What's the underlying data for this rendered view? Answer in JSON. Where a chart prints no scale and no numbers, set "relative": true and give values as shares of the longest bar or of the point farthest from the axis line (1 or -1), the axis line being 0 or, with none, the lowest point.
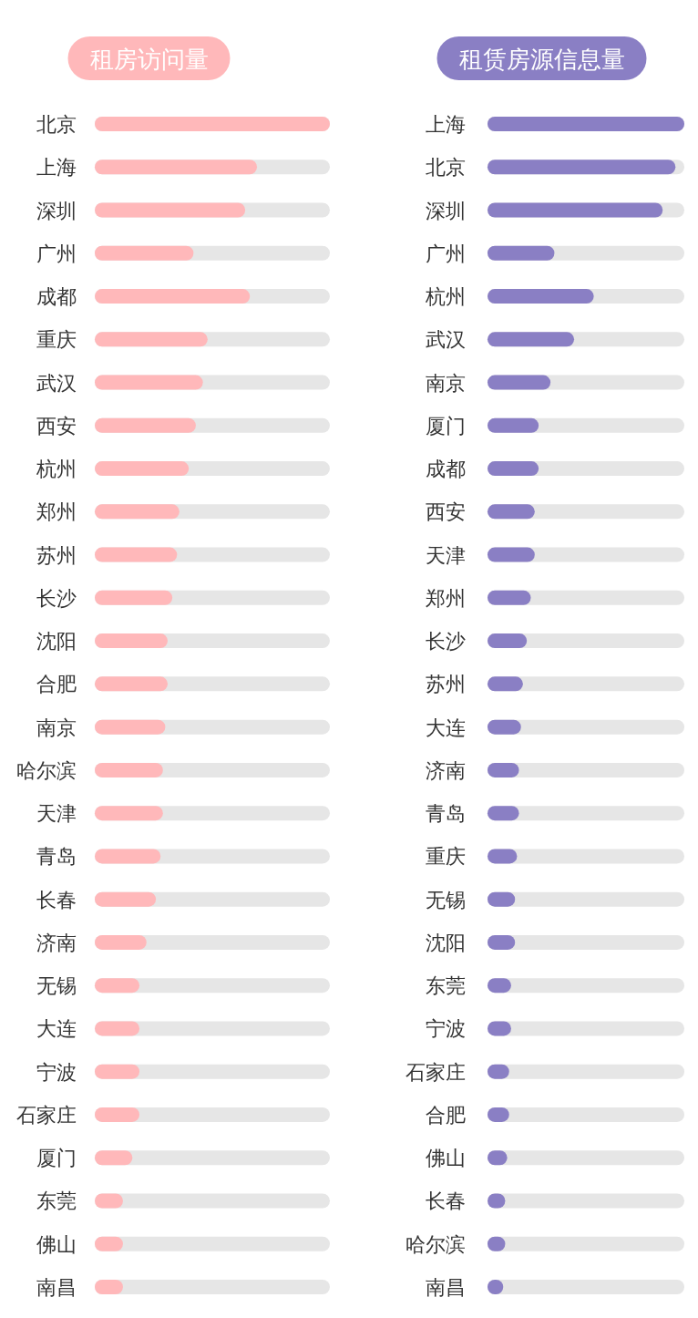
{
  "chart_data": [
    {
      "type": "bar",
      "orientation": "horizontal",
      "relative": true,
      "title": "租房访问量",
      "color": "#ffb8ba",
      "categories": [
        "北京",
        "上海",
        "深圳",
        "广州",
        "成都",
        "重庆",
        "武汉",
        "西安",
        "杭州",
        "郑州",
        "苏州",
        "长沙",
        "沈阳",
        "合肥",
        "南京",
        "哈尔滨",
        "天津",
        "青岛",
        "长春",
        "济南",
        "无锡",
        "大连",
        "宁波",
        "石家庄",
        "厦门",
        "东莞",
        "佛山",
        "南昌"
      ],
      "values": [
        1,
        0.69,
        0.64,
        0.42,
        0.66,
        0.48,
        0.46,
        0.43,
        0.4,
        0.36,
        0.35,
        0.33,
        0.31,
        0.31,
        0.3,
        0.29,
        0.29,
        0.28,
        0.26,
        0.22,
        0.19,
        0.19,
        0.19,
        0.19,
        0.16,
        0.12,
        0.12,
        0.12
      ]
    },
    {
      "type": "bar",
      "orientation": "horizontal",
      "relative": true,
      "title": "租赁房源信息量",
      "color": "#8a7fc4",
      "categories": [
        "上海",
        "北京",
        "深圳",
        "广州",
        "杭州",
        "武汉",
        "南京",
        "厦门",
        "成都",
        "西安",
        "天津",
        "郑州",
        "长沙",
        "苏州",
        "大连",
        "济南",
        "青岛",
        "重庆",
        "无锡",
        "沈阳",
        "东莞",
        "宁波",
        "石家庄",
        "合肥",
        "佛山",
        "长春",
        "哈尔滨",
        "南昌"
      ],
      "values": [
        1,
        0.955,
        0.89,
        0.34,
        0.54,
        0.44,
        0.32,
        0.26,
        0.26,
        0.24,
        0.24,
        0.22,
        0.2,
        0.18,
        0.17,
        0.16,
        0.16,
        0.15,
        0.14,
        0.14,
        0.12,
        0.12,
        0.11,
        0.11,
        0.1,
        0.09,
        0.09,
        0.08
      ]
    }
  ]
}
